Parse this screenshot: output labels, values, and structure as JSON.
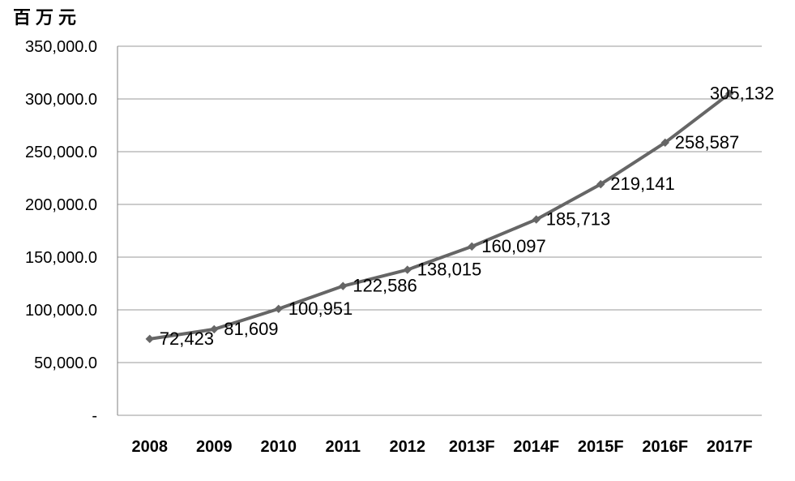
{
  "chart_data": {
    "type": "line",
    "unit_label": "百万元",
    "categories": [
      "2008",
      "2009",
      "2010",
      "2011",
      "2012",
      "2013F",
      "2014F",
      "2015F",
      "2016F",
      "2017F"
    ],
    "series": [
      {
        "name": "",
        "values": [
          72423,
          81609,
          100951,
          122586,
          138015,
          160097,
          185713,
          219141,
          258587,
          305132
        ]
      }
    ],
    "data_labels": [
      "72,423",
      "81,609",
      "100,951",
      "122,586",
      "138,015",
      "160,097",
      "185,713",
      "219,141",
      "258,587",
      "305,132"
    ],
    "y_tick_labels": [
      "-",
      "50,000.0",
      "100,000.0",
      "150,000.0",
      "200,000.0",
      "250,000.0",
      "300,000.0",
      "350,000.0"
    ],
    "ylim": [
      0,
      350000
    ],
    "y_tick_step": 50000,
    "grid": true,
    "legend": "none",
    "marker": "diamond",
    "colors": {
      "line": "#666666",
      "marker": "#666666",
      "grid": "#999999",
      "axis": "#808080",
      "text": "#000000"
    }
  }
}
